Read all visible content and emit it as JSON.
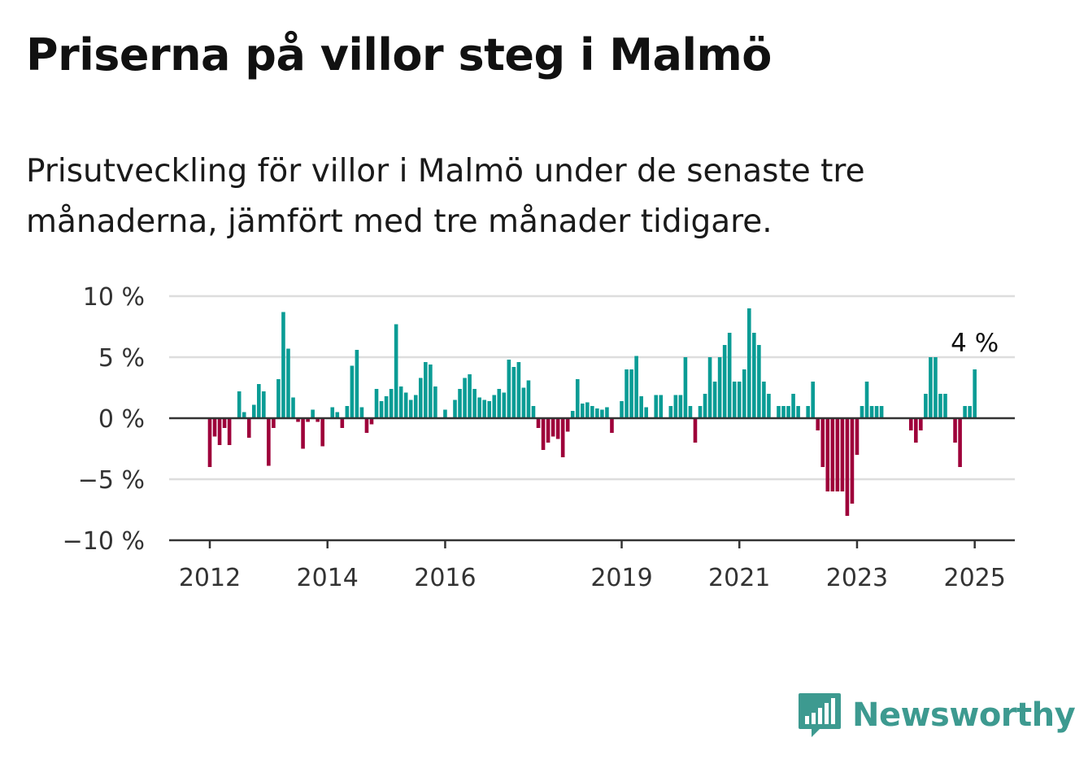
{
  "title": "Priserna på villor steg i Malmö",
  "subtitle": "Prisutveckling för villor i Malmö under de senaste tre månaderna, jämfört med tre månader tidigare.",
  "logo": {
    "text": "Newsworthy",
    "icon": "bar-chart-speech-bubble-icon"
  },
  "colors": {
    "positive": "#0a9c95",
    "negative": "#9e003a",
    "grid": "#dddddd",
    "axis": "#333333",
    "logo": "#3d9a90"
  },
  "chart_data": {
    "type": "bar",
    "title": "Priserna på villor steg i Malmö",
    "subtitle": "Prisutveckling för villor i Malmö under de senaste tre månaderna, jämfört med tre månader tidigare.",
    "xlabel": "",
    "ylabel": "",
    "ylim": [
      -10,
      10
    ],
    "yticks": [
      10,
      5,
      0,
      -5,
      -10
    ],
    "ytick_labels": [
      "10 %",
      "5 %",
      "0 %",
      "−5 %",
      "−10 %"
    ],
    "x_start": "2012-01",
    "x_frequency": "monthly",
    "xticks": [
      "2012-01",
      "2014-01",
      "2016-01",
      "2019-01",
      "2021-01",
      "2023-01",
      "2025-01"
    ],
    "xtick_labels": [
      "2012",
      "2014",
      "2016",
      "2019",
      "2021",
      "2023",
      "2025"
    ],
    "grid": true,
    "units": "%",
    "annotation": {
      "x": "2025-01",
      "label": "4 %"
    },
    "values": [
      -4,
      -1.5,
      -2.2,
      -0.8,
      -2.2,
      0,
      2.2,
      0.5,
      -1.6,
      1.1,
      2.8,
      2.2,
      -3.9,
      -0.8,
      3.2,
      8.7,
      5.7,
      1.7,
      -0.3,
      -2.5,
      -0.3,
      0.7,
      -0.3,
      -2.3,
      0,
      0.9,
      0.5,
      -0.8,
      1,
      4.3,
      5.6,
      0.9,
      -1.2,
      -0.5,
      2.4,
      1.4,
      1.8,
      2.4,
      7.7,
      2.6,
      2.1,
      1.5,
      1.9,
      3.3,
      4.6,
      4.4,
      2.6,
      0,
      0.7,
      0,
      1.5,
      2.4,
      3.3,
      3.6,
      2.4,
      1.7,
      1.5,
      1.4,
      1.9,
      2.4,
      2.1,
      4.8,
      4.2,
      4.6,
      2.5,
      3.1,
      1,
      -0.8,
      -2.6,
      -2,
      -1.5,
      -1.7,
      -3.2,
      -1.1,
      0.6,
      3.2,
      1.2,
      1.3,
      1,
      0.8,
      0.7,
      0.9,
      -1.2,
      0,
      1.4,
      4,
      4,
      5.1,
      1.8,
      0.9,
      0,
      1.9,
      1.9,
      0,
      1,
      1.9,
      1.9,
      5,
      1,
      -2,
      1,
      2,
      5,
      3,
      5,
      6,
      7,
      3,
      3,
      4,
      9,
      7,
      6,
      3,
      2,
      0,
      1,
      1,
      1,
      2,
      1,
      0,
      1,
      3,
      -1,
      -4,
      -6,
      -6,
      -6,
      -6,
      -8,
      -7,
      -3,
      1,
      3,
      1,
      1,
      1,
      0,
      0,
      0,
      0,
      0,
      -1,
      -2,
      -1,
      2,
      5,
      5,
      2,
      2,
      0,
      -2,
      -4,
      1,
      1,
      4
    ]
  }
}
